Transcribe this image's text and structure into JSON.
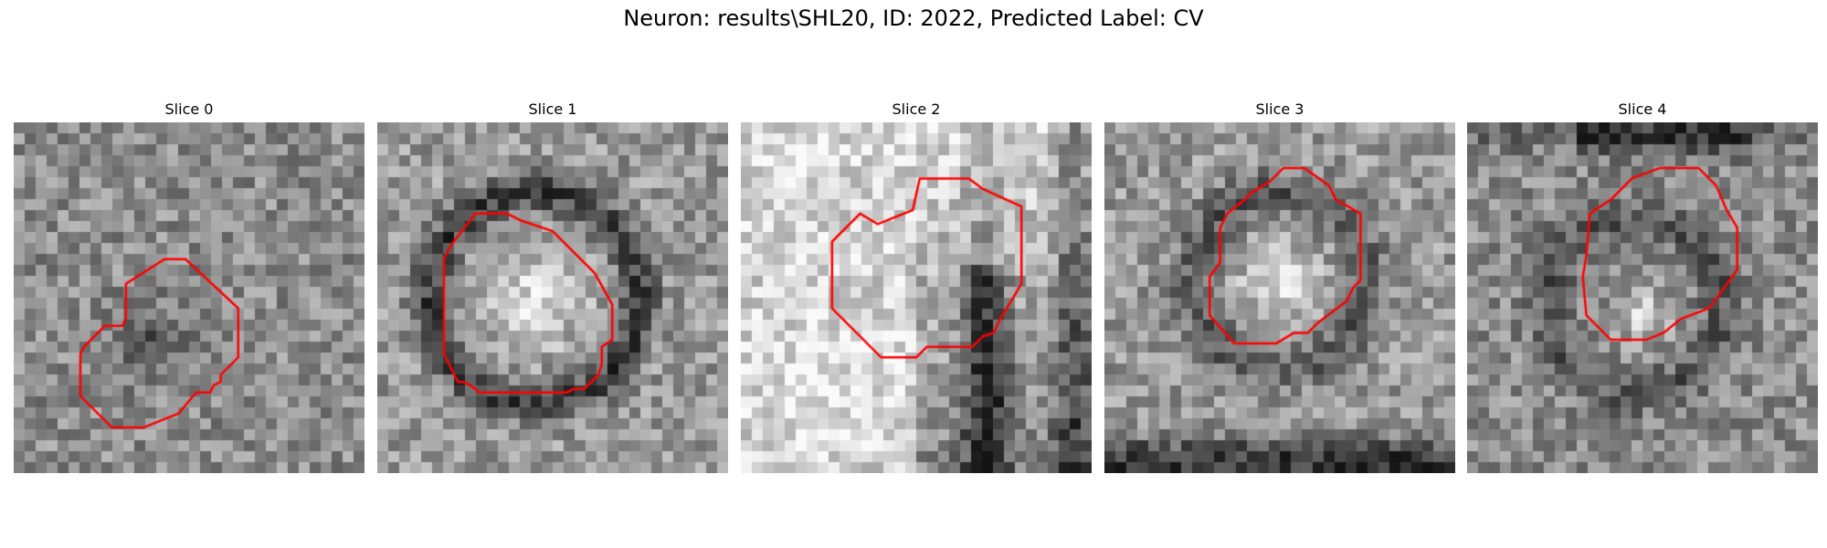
{
  "figure": {
    "title": "Neuron: results\\SHL20, ID: 2022, Predicted Label: CV"
  },
  "contour_color": "#ff0000",
  "slices": [
    {
      "title": "Slice 0",
      "seed": 11,
      "image_description": "noisy grey patch, dark blob in lower centre",
      "contour": [
        [
          0.43,
          0.39
        ],
        [
          0.49,
          0.39
        ],
        [
          0.64,
          0.53
        ],
        [
          0.64,
          0.67
        ],
        [
          0.59,
          0.72
        ],
        [
          0.59,
          0.74
        ],
        [
          0.57,
          0.75
        ],
        [
          0.56,
          0.77
        ],
        [
          0.52,
          0.77
        ],
        [
          0.47,
          0.83
        ],
        [
          0.37,
          0.87
        ],
        [
          0.28,
          0.87
        ],
        [
          0.19,
          0.78
        ],
        [
          0.19,
          0.66
        ],
        [
          0.2,
          0.64
        ],
        [
          0.26,
          0.58
        ],
        [
          0.31,
          0.58
        ],
        [
          0.32,
          0.56
        ],
        [
          0.32,
          0.46
        ]
      ]
    },
    {
      "title": "Slice 1",
      "seed": 23,
      "image_description": "bright round soma with dark ring",
      "contour": [
        [
          0.21,
          0.35
        ],
        [
          0.28,
          0.26
        ],
        [
          0.37,
          0.26
        ],
        [
          0.41,
          0.28
        ],
        [
          0.5,
          0.31
        ],
        [
          0.62,
          0.43
        ],
        [
          0.67,
          0.52
        ],
        [
          0.67,
          0.62
        ],
        [
          0.64,
          0.64
        ],
        [
          0.64,
          0.69
        ],
        [
          0.63,
          0.72
        ],
        [
          0.6,
          0.75
        ],
        [
          0.59,
          0.76
        ],
        [
          0.56,
          0.76
        ],
        [
          0.54,
          0.77
        ],
        [
          0.29,
          0.77
        ],
        [
          0.28,
          0.76
        ],
        [
          0.25,
          0.74
        ],
        [
          0.23,
          0.74
        ],
        [
          0.19,
          0.66
        ],
        [
          0.19,
          0.39
        ]
      ]
    },
    {
      "title": "Slice 2",
      "seed": 37,
      "image_description": "very bright lower left region, dark vertical band right",
      "contour": [
        [
          0.39,
          0.29
        ],
        [
          0.49,
          0.25
        ],
        [
          0.51,
          0.16
        ],
        [
          0.65,
          0.16
        ],
        [
          0.69,
          0.19
        ],
        [
          0.8,
          0.24
        ],
        [
          0.8,
          0.46
        ],
        [
          0.74,
          0.56
        ],
        [
          0.72,
          0.6
        ],
        [
          0.69,
          0.61
        ],
        [
          0.66,
          0.64
        ],
        [
          0.53,
          0.64
        ],
        [
          0.5,
          0.67
        ],
        [
          0.4,
          0.67
        ],
        [
          0.26,
          0.53
        ],
        [
          0.26,
          0.34
        ],
        [
          0.34,
          0.26
        ]
      ]
    },
    {
      "title": "Slice 3",
      "seed": 51,
      "image_description": "grey textured patch with bright central soma",
      "contour": [
        [
          0.35,
          0.26
        ],
        [
          0.4,
          0.22
        ],
        [
          0.42,
          0.2
        ],
        [
          0.47,
          0.17
        ],
        [
          0.51,
          0.13
        ],
        [
          0.57,
          0.13
        ],
        [
          0.64,
          0.18
        ],
        [
          0.66,
          0.22
        ],
        [
          0.73,
          0.26
        ],
        [
          0.73,
          0.45
        ],
        [
          0.71,
          0.47
        ],
        [
          0.69,
          0.51
        ],
        [
          0.61,
          0.57
        ],
        [
          0.58,
          0.6
        ],
        [
          0.54,
          0.6
        ],
        [
          0.49,
          0.63
        ],
        [
          0.37,
          0.63
        ],
        [
          0.3,
          0.55
        ],
        [
          0.3,
          0.44
        ],
        [
          0.33,
          0.4
        ],
        [
          0.33,
          0.3
        ]
      ]
    },
    {
      "title": "Slice 4",
      "seed": 67,
      "image_description": "grey patch, dark band at top, bright lower centre",
      "contour": [
        [
          0.35,
          0.26
        ],
        [
          0.41,
          0.22
        ],
        [
          0.47,
          0.16
        ],
        [
          0.55,
          0.13
        ],
        [
          0.66,
          0.13
        ],
        [
          0.71,
          0.18
        ],
        [
          0.74,
          0.25
        ],
        [
          0.77,
          0.3
        ],
        [
          0.77,
          0.42
        ],
        [
          0.72,
          0.49
        ],
        [
          0.69,
          0.53
        ],
        [
          0.61,
          0.56
        ],
        [
          0.56,
          0.6
        ],
        [
          0.51,
          0.62
        ],
        [
          0.41,
          0.62
        ],
        [
          0.34,
          0.55
        ],
        [
          0.33,
          0.44
        ],
        [
          0.34,
          0.38
        ]
      ]
    }
  ]
}
